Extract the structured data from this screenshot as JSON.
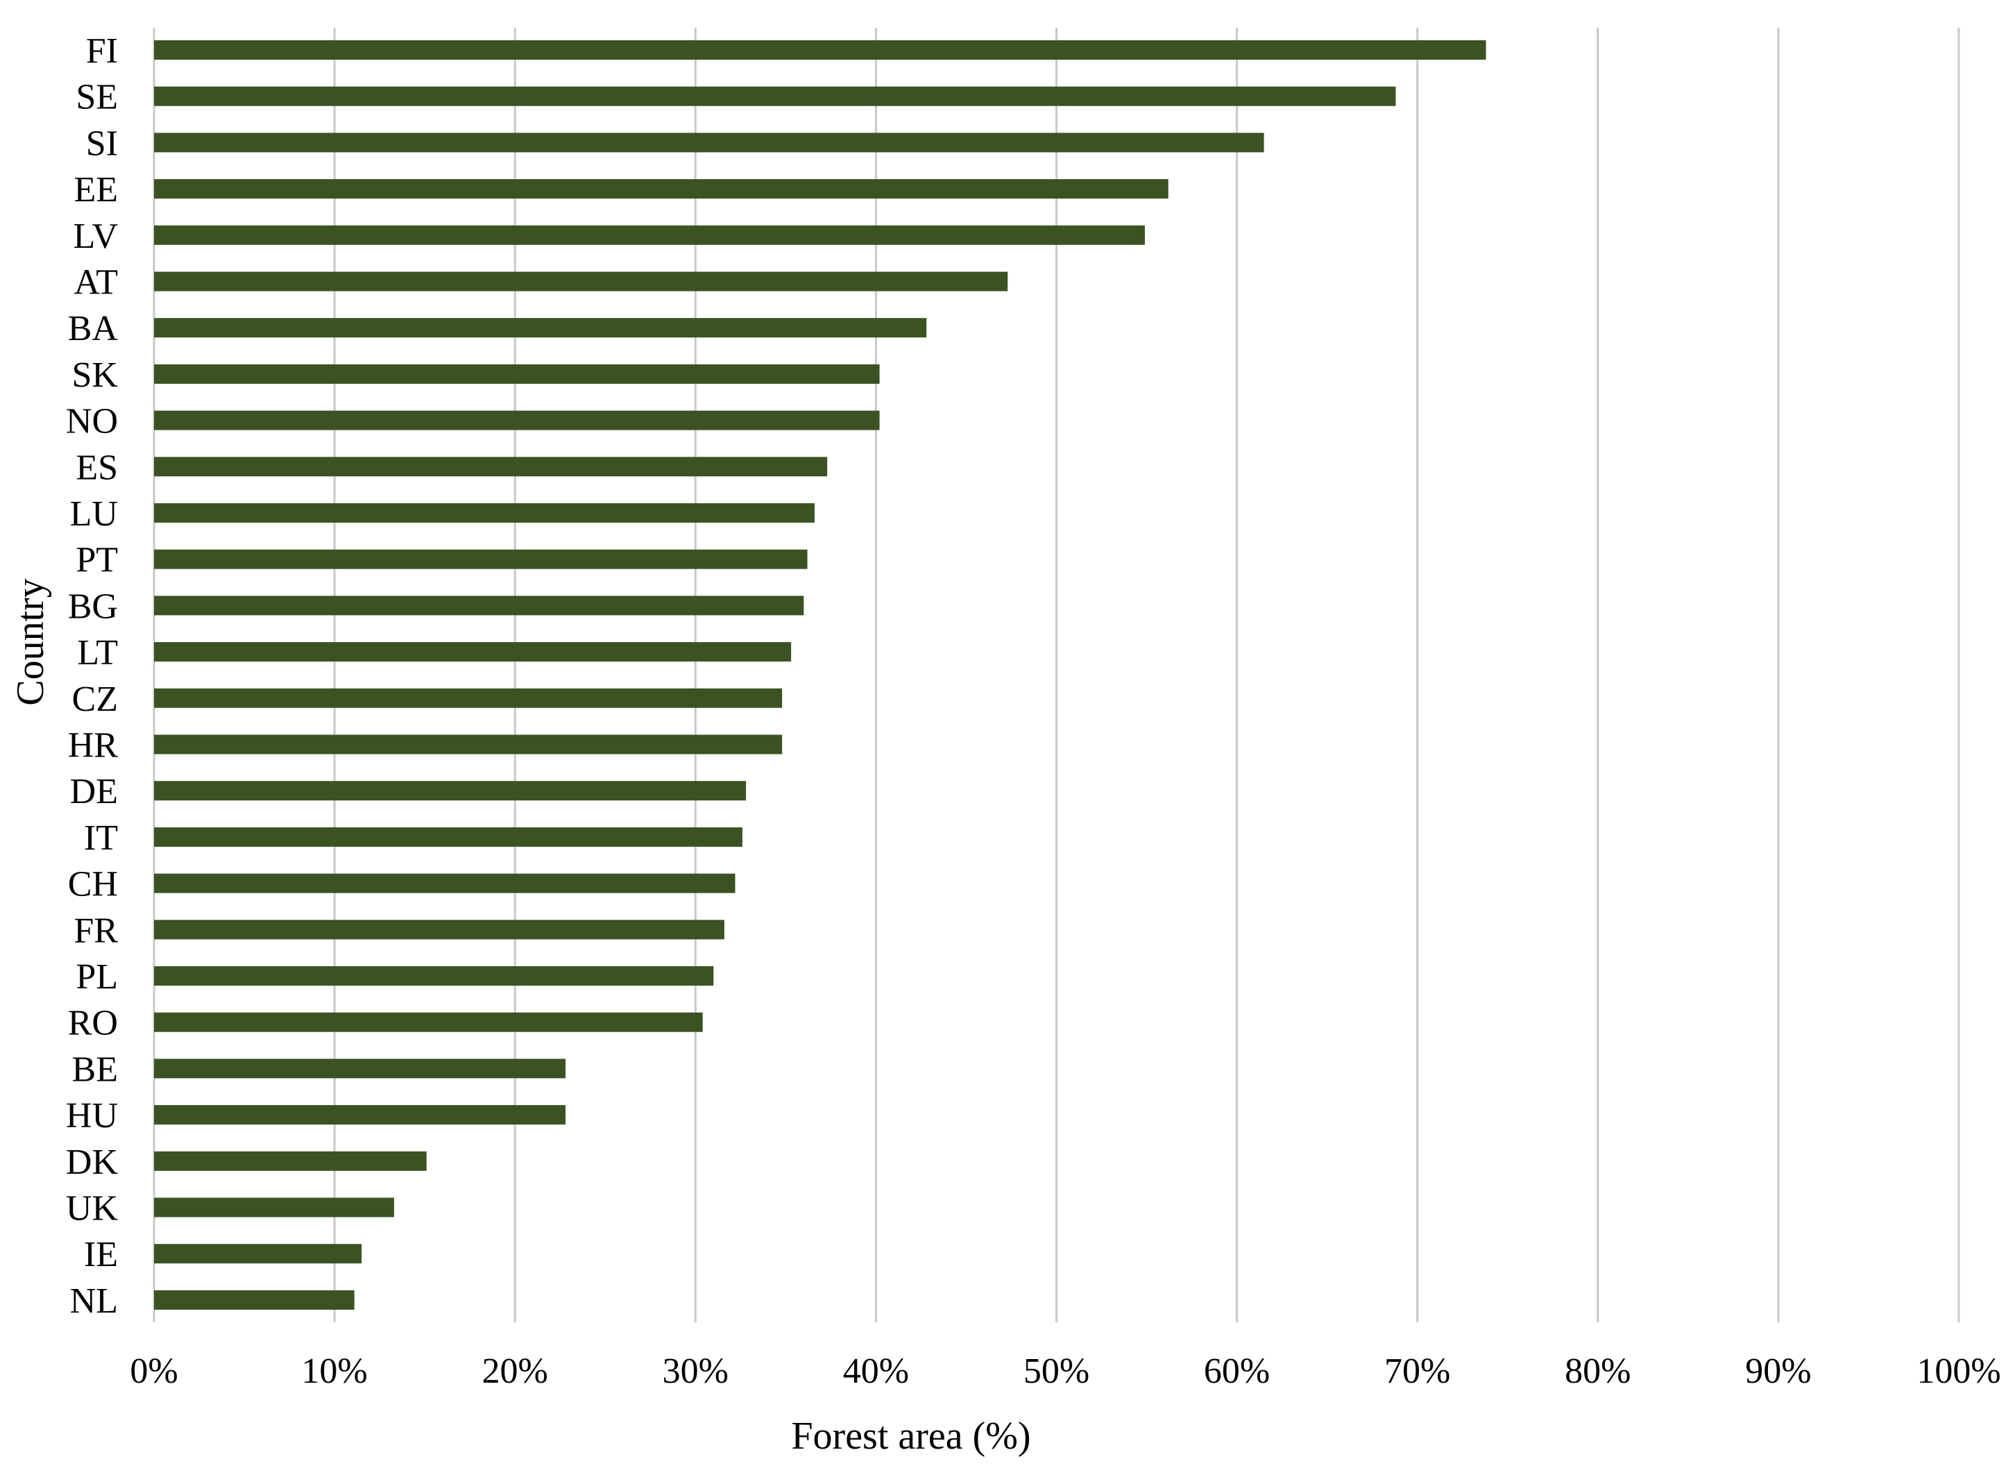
{
  "chart_data": {
    "type": "bar",
    "orientation": "horizontal",
    "title": "",
    "xlabel": "Forest area (%)",
    "ylabel": "Country",
    "categories": [
      "FI",
      "SE",
      "SI",
      "EE",
      "LV",
      "AT",
      "BA",
      "SK",
      "NO",
      "ES",
      "LU",
      "PT",
      "BG",
      "LT",
      "CZ",
      "HR",
      "DE",
      "IT",
      "CH",
      "FR",
      "PL",
      "RO",
      "BE",
      "HU",
      "DK",
      "UK",
      "IE",
      "NL"
    ],
    "values": [
      73.8,
      68.8,
      61.5,
      56.2,
      54.9,
      47.3,
      42.8,
      40.2,
      40.2,
      37.3,
      36.6,
      36.2,
      36.0,
      35.3,
      34.8,
      34.8,
      32.8,
      32.6,
      32.2,
      31.6,
      31.0,
      30.4,
      22.8,
      22.8,
      15.1,
      13.3,
      11.5,
      11.1
    ],
    "xlim": [
      0,
      100
    ],
    "xticks": [
      "0%",
      "10%",
      "20%",
      "30%",
      "40%",
      "50%",
      "60%",
      "70%",
      "80%",
      "90%",
      "100%"
    ],
    "grid": true,
    "bar_color": "#3b5323",
    "grid_color": "#c8c8c8"
  }
}
